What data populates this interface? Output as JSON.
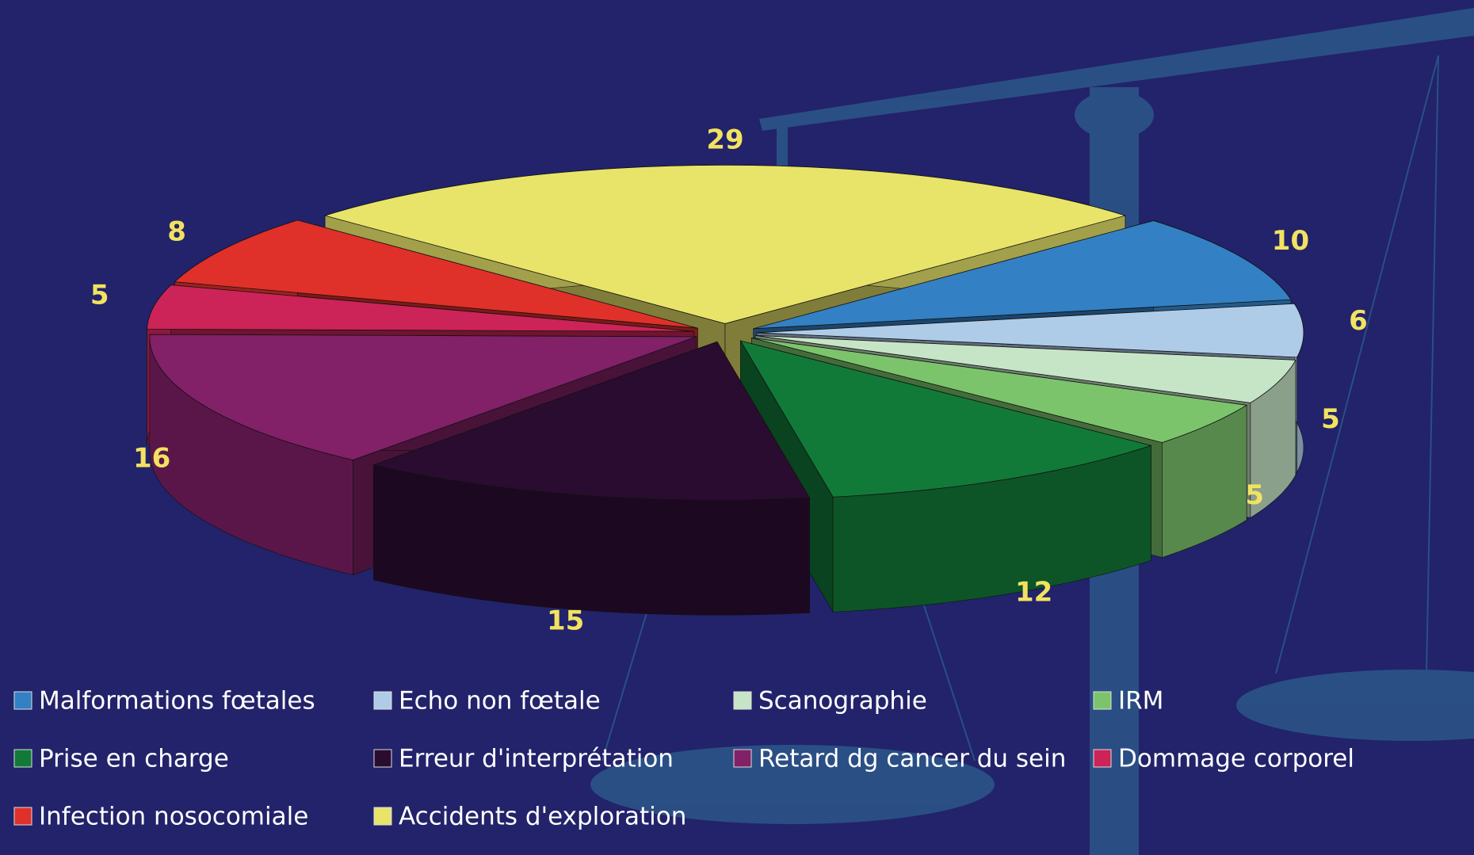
{
  "chart_data": {
    "type": "pie",
    "categories": [
      "Malformations fœtales",
      "Echo non fœtale",
      "Scanographie",
      "IRM",
      "Prise en charge",
      "Erreur d'interprétation",
      "Retard dg cancer du sein",
      "Dommage corporel",
      "Infection nosocomiale",
      "Accidents d'exploration"
    ],
    "values": [
      10,
      6,
      5,
      5,
      12,
      15,
      16,
      5,
      8,
      29
    ],
    "colors": [
      "#3380c4",
      "#aecce8",
      "#c6e5c6",
      "#7cc46c",
      "#127a38",
      "#2a0c30",
      "#822068",
      "#cc2458",
      "#e0302a",
      "#e8e46a"
    ],
    "legend": "bottom"
  }
}
